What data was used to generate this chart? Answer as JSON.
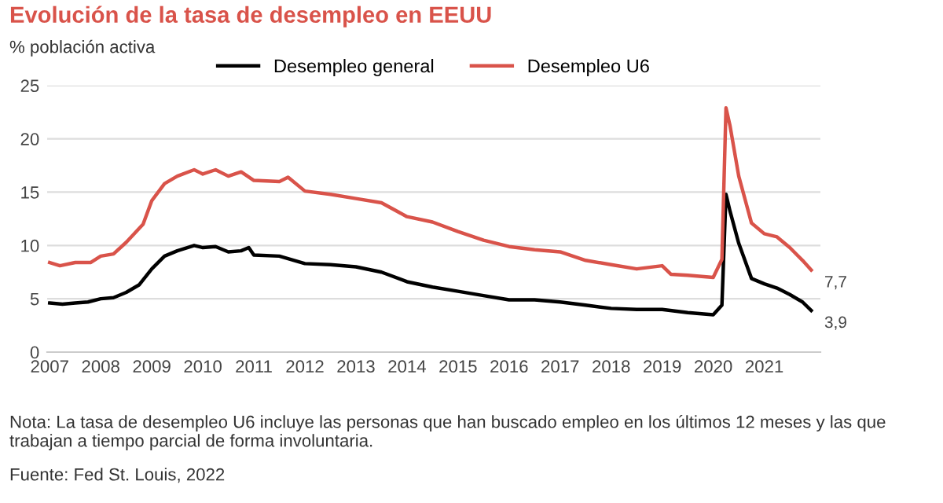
{
  "chart_data": {
    "type": "line",
    "title": "Evolución de la tasa de desempleo en EEUU",
    "subtitle": "% población activa",
    "series": [
      {
        "name": "Desempleo general",
        "color": "#000000",
        "x": [
          2007.0,
          2007.25,
          2007.5,
          2007.75,
          2008.0,
          2008.25,
          2008.5,
          2008.75,
          2009.0,
          2009.25,
          2009.5,
          2009.83,
          2010.0,
          2010.25,
          2010.5,
          2010.75,
          2010.9,
          2011.0,
          2011.5,
          2012.0,
          2012.5,
          2013.0,
          2013.5,
          2014.0,
          2014.5,
          2015.0,
          2015.5,
          2016.0,
          2016.5,
          2017.0,
          2017.5,
          2018.0,
          2018.5,
          2019.0,
          2019.5,
          2020.0,
          2020.17,
          2020.25,
          2020.33,
          2020.5,
          2020.75,
          2021.0,
          2021.25,
          2021.5,
          2021.75,
          2021.92
        ],
        "values": [
          4.6,
          4.5,
          4.6,
          4.7,
          5.0,
          5.1,
          5.6,
          6.3,
          7.8,
          9.0,
          9.5,
          10.0,
          9.8,
          9.9,
          9.4,
          9.5,
          9.8,
          9.1,
          9.0,
          8.3,
          8.2,
          8.0,
          7.5,
          6.6,
          6.1,
          5.7,
          5.3,
          4.9,
          4.9,
          4.7,
          4.4,
          4.1,
          4.0,
          4.0,
          3.7,
          3.5,
          4.4,
          14.8,
          13.2,
          10.2,
          6.9,
          6.4,
          6.0,
          5.4,
          4.7,
          3.9
        ]
      },
      {
        "name": "Desempleo U6",
        "color": "#d9534a",
        "x": [
          2007.0,
          2007.2,
          2007.5,
          2007.8,
          2008.0,
          2008.25,
          2008.5,
          2008.83,
          2009.0,
          2009.25,
          2009.5,
          2009.83,
          2010.0,
          2010.25,
          2010.5,
          2010.75,
          2011.0,
          2011.5,
          2011.67,
          2012.0,
          2012.5,
          2013.0,
          2013.5,
          2014.0,
          2014.5,
          2015.0,
          2015.5,
          2016.0,
          2016.5,
          2017.0,
          2017.5,
          2018.0,
          2018.5,
          2019.0,
          2019.17,
          2019.5,
          2020.0,
          2020.17,
          2020.25,
          2020.33,
          2020.5,
          2020.75,
          2021.0,
          2021.25,
          2021.5,
          2021.75,
          2021.92
        ],
        "values": [
          8.4,
          8.1,
          8.4,
          8.4,
          9.0,
          9.2,
          10.3,
          12.0,
          14.2,
          15.8,
          16.5,
          17.1,
          16.7,
          17.1,
          16.5,
          16.9,
          16.1,
          16.0,
          16.4,
          15.1,
          14.8,
          14.4,
          14.0,
          12.7,
          12.2,
          11.3,
          10.5,
          9.9,
          9.6,
          9.4,
          8.6,
          8.2,
          7.8,
          8.1,
          7.3,
          7.2,
          7.0,
          8.7,
          22.9,
          21.2,
          16.5,
          12.1,
          11.1,
          10.8,
          9.8,
          8.6,
          7.7
        ]
      }
    ],
    "xlim": [
      2006.95,
      2022.1
    ],
    "xticks": [
      2007,
      2008,
      2009,
      2010,
      2011,
      2012,
      2013,
      2014,
      2015,
      2016,
      2017,
      2018,
      2019,
      2020,
      2021
    ],
    "ylim": [
      0,
      25
    ],
    "yticks": [
      0,
      5,
      10,
      15,
      20,
      25
    ],
    "grid": "y",
    "legend": "top",
    "marker": "none",
    "line_style": "solid",
    "annotations": [
      {
        "text": "7,7",
        "x": 2021.92,
        "y": 7.7
      },
      {
        "text": "3,9",
        "x": 2021.92,
        "y": 3.9
      },
      "Nota: La tasa de desempleo U6 incluye las personas que han buscado empleo en los últimos 12 meses y las que trabajan a tiempo parcial de forma involuntaria.",
      "Fuente: Fed St. Louis, 2022"
    ]
  }
}
